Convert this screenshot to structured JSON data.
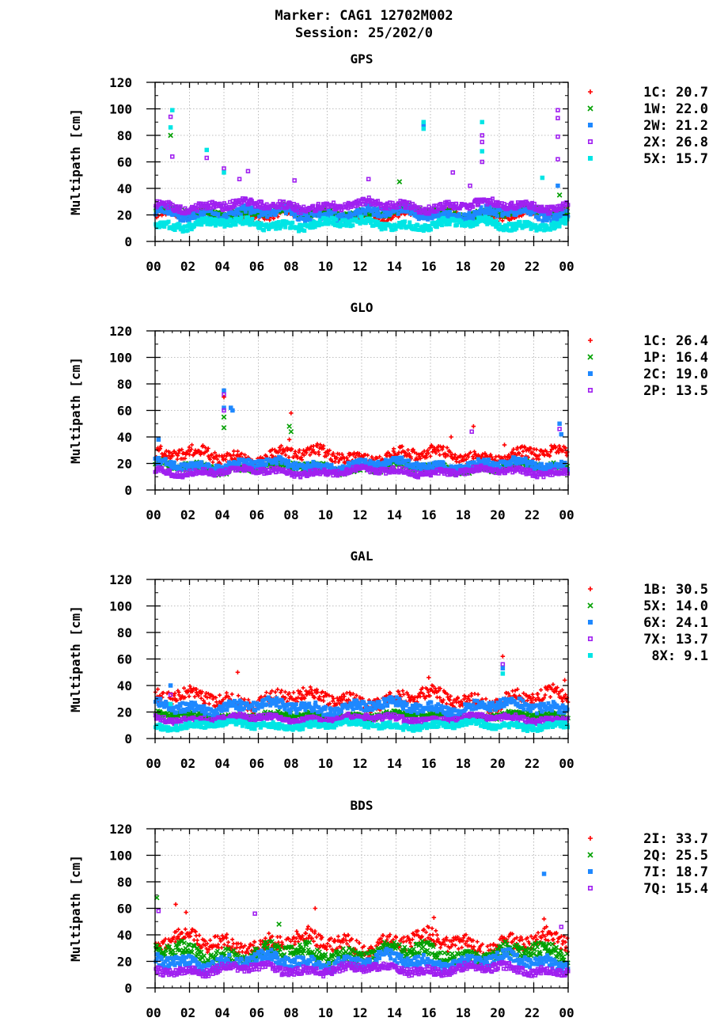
{
  "header": {
    "marker_line": "Marker: CAG1 12702M002",
    "session_line": "Session: 25/202/0"
  },
  "colors": {
    "red": "#ff0000",
    "green": "#00a000",
    "blue": "#1e88ff",
    "purple": "#a020f0",
    "cyan": "#00e5e5"
  },
  "chart_data": [
    {
      "type": "scatter",
      "title": "GPS",
      "ylabel": "Multipath [cm]",
      "xlabel": "",
      "ylim": [
        0,
        120
      ],
      "yticks": [
        0,
        20,
        40,
        60,
        80,
        100,
        120
      ],
      "xlim": [
        0,
        24
      ],
      "xticks": [
        "00",
        "02",
        "04",
        "06",
        "08",
        "10",
        "12",
        "14",
        "16",
        "18",
        "20",
        "22",
        "00"
      ],
      "grid": true,
      "legend": "right",
      "series": [
        {
          "code": "1C",
          "value": "20.7",
          "marker": "plus",
          "color": "#ff0000"
        },
        {
          "code": "1W",
          "value": "22.0",
          "marker": "x",
          "color": "#00a000"
        },
        {
          "code": "2W",
          "value": "21.2",
          "marker": "square",
          "color": "#1e88ff"
        },
        {
          "code": "2X",
          "value": "26.8",
          "marker": "open-square",
          "color": "#a020f0"
        },
        {
          "code": "5X",
          "value": "15.7",
          "marker": "square",
          "color": "#00e5e5"
        }
      ],
      "points": [
        {
          "series": 3,
          "x": 0.9,
          "y": 94
        },
        {
          "series": 4,
          "x": 1.0,
          "y": 99
        },
        {
          "series": 1,
          "x": 0.9,
          "y": 80
        },
        {
          "series": 4,
          "x": 0.9,
          "y": 86
        },
        {
          "series": 3,
          "x": 1.0,
          "y": 64
        },
        {
          "series": 4,
          "x": 3.0,
          "y": 69
        },
        {
          "series": 3,
          "x": 3.0,
          "y": 63
        },
        {
          "series": 3,
          "x": 4.0,
          "y": 55
        },
        {
          "series": 4,
          "x": 4.0,
          "y": 52
        },
        {
          "series": 3,
          "x": 5.4,
          "y": 53
        },
        {
          "series": 2,
          "x": 15.6,
          "y": 88
        },
        {
          "series": 4,
          "x": 15.6,
          "y": 90
        },
        {
          "series": 4,
          "x": 15.6,
          "y": 85
        },
        {
          "series": 4,
          "x": 19.0,
          "y": 90
        },
        {
          "series": 3,
          "x": 19.0,
          "y": 80
        },
        {
          "series": 3,
          "x": 19.0,
          "y": 75
        },
        {
          "series": 4,
          "x": 19.0,
          "y": 68
        },
        {
          "series": 3,
          "x": 19.0,
          "y": 60
        },
        {
          "series": 3,
          "x": 23.4,
          "y": 99
        },
        {
          "series": 3,
          "x": 23.4,
          "y": 93
        },
        {
          "series": 3,
          "x": 23.4,
          "y": 79
        },
        {
          "series": 3,
          "x": 23.4,
          "y": 62
        },
        {
          "series": 1,
          "x": 23.5,
          "y": 35
        },
        {
          "series": 2,
          "x": 23.4,
          "y": 42
        },
        {
          "series": 3,
          "x": 4.9,
          "y": 47
        },
        {
          "series": 3,
          "x": 8.1,
          "y": 46
        },
        {
          "series": 3,
          "x": 12.4,
          "y": 47
        },
        {
          "series": 1,
          "x": 14.2,
          "y": 45
        },
        {
          "series": 3,
          "x": 17.3,
          "y": 52
        },
        {
          "series": 3,
          "x": 18.3,
          "y": 42
        },
        {
          "series": 4,
          "x": 22.5,
          "y": 48
        }
      ]
    },
    {
      "type": "scatter",
      "title": "GLO",
      "ylabel": "Multipath [cm]",
      "xlabel": "",
      "ylim": [
        0,
        120
      ],
      "yticks": [
        0,
        20,
        40,
        60,
        80,
        100,
        120
      ],
      "xlim": [
        0,
        24
      ],
      "xticks": [
        "00",
        "02",
        "04",
        "06",
        "08",
        "10",
        "12",
        "14",
        "16",
        "18",
        "20",
        "22",
        "00"
      ],
      "grid": true,
      "legend": "right",
      "series": [
        {
          "code": "1C",
          "value": "26.4",
          "marker": "plus",
          "color": "#ff0000"
        },
        {
          "code": "1P",
          "value": "16.4",
          "marker": "x",
          "color": "#00a000"
        },
        {
          "code": "2C",
          "value": "19.0",
          "marker": "square",
          "color": "#1e88ff"
        },
        {
          "code": "2P",
          "value": "13.5",
          "marker": "open-square",
          "color": "#a020f0"
        }
      ],
      "points": [
        {
          "series": 2,
          "x": 4.0,
          "y": 75
        },
        {
          "series": 3,
          "x": 4.0,
          "y": 72
        },
        {
          "series": 0,
          "x": 4.0,
          "y": 70
        },
        {
          "series": 2,
          "x": 4.0,
          "y": 62
        },
        {
          "series": 3,
          "x": 4.0,
          "y": 60
        },
        {
          "series": 1,
          "x": 4.0,
          "y": 55
        },
        {
          "series": 1,
          "x": 4.0,
          "y": 47
        },
        {
          "series": 2,
          "x": 4.4,
          "y": 62
        },
        {
          "series": 2,
          "x": 4.5,
          "y": 60
        },
        {
          "series": 0,
          "x": 7.9,
          "y": 58
        },
        {
          "series": 1,
          "x": 7.8,
          "y": 48
        },
        {
          "series": 1,
          "x": 7.9,
          "y": 44
        },
        {
          "series": 0,
          "x": 7.8,
          "y": 38
        },
        {
          "series": 0,
          "x": 18.5,
          "y": 48
        },
        {
          "series": 3,
          "x": 18.4,
          "y": 44
        },
        {
          "series": 0,
          "x": 17.2,
          "y": 40
        },
        {
          "series": 0,
          "x": 20.3,
          "y": 34
        },
        {
          "series": 2,
          "x": 23.5,
          "y": 50
        },
        {
          "series": 3,
          "x": 23.5,
          "y": 46
        },
        {
          "series": 2,
          "x": 23.6,
          "y": 42
        },
        {
          "series": 2,
          "x": 0.2,
          "y": 38
        }
      ]
    },
    {
      "type": "scatter",
      "title": "GAL",
      "ylabel": "Multipath [cm]",
      "xlabel": "",
      "ylim": [
        0,
        120
      ],
      "yticks": [
        0,
        20,
        40,
        60,
        80,
        100,
        120
      ],
      "xlim": [
        0,
        24
      ],
      "xticks": [
        "00",
        "02",
        "04",
        "06",
        "08",
        "10",
        "12",
        "14",
        "16",
        "18",
        "20",
        "22",
        "00"
      ],
      "grid": true,
      "legend": "right",
      "series": [
        {
          "code": "1B",
          "value": "30.5",
          "marker": "plus",
          "color": "#ff0000"
        },
        {
          "code": "5X",
          "value": "14.0",
          "marker": "x",
          "color": "#00a000"
        },
        {
          "code": "6X",
          "value": "24.1",
          "marker": "square",
          "color": "#1e88ff"
        },
        {
          "code": "7X",
          "value": "13.7",
          "marker": "open-square",
          "color": "#a020f0"
        },
        {
          "code": "8X",
          "value": " 9.1",
          "marker": "square",
          "color": "#00e5e5"
        }
      ],
      "points": [
        {
          "series": 0,
          "x": 20.2,
          "y": 62
        },
        {
          "series": 3,
          "x": 20.2,
          "y": 56
        },
        {
          "series": 2,
          "x": 20.2,
          "y": 53
        },
        {
          "series": 4,
          "x": 20.2,
          "y": 49
        },
        {
          "series": 2,
          "x": 0.9,
          "y": 40
        },
        {
          "series": 3,
          "x": 0.9,
          "y": 33
        },
        {
          "series": 0,
          "x": 4.8,
          "y": 50
        },
        {
          "series": 0,
          "x": 15.9,
          "y": 46
        },
        {
          "series": 0,
          "x": 23.8,
          "y": 44
        },
        {
          "series": 4,
          "x": 0.9,
          "y": 26
        }
      ]
    },
    {
      "type": "scatter",
      "title": "BDS",
      "ylabel": "Multipath [cm]",
      "xlabel": "",
      "ylim": [
        0,
        120
      ],
      "yticks": [
        0,
        20,
        40,
        60,
        80,
        100,
        120
      ],
      "xlim": [
        0,
        24
      ],
      "xticks": [
        "00",
        "02",
        "04",
        "06",
        "08",
        "10",
        "12",
        "14",
        "16",
        "18",
        "20",
        "22",
        "00"
      ],
      "grid": true,
      "legend": "right",
      "series": [
        {
          "code": "2I",
          "value": "33.7",
          "marker": "plus",
          "color": "#ff0000"
        },
        {
          "code": "2Q",
          "value": "25.5",
          "marker": "x",
          "color": "#00a000"
        },
        {
          "code": "7I",
          "value": "18.7",
          "marker": "square",
          "color": "#1e88ff"
        },
        {
          "code": "7Q",
          "value": "15.4",
          "marker": "open-square",
          "color": "#a020f0"
        }
      ],
      "points": [
        {
          "series": 2,
          "x": 22.6,
          "y": 86
        },
        {
          "series": 0,
          "x": 22.6,
          "y": 52
        },
        {
          "series": 1,
          "x": 0.1,
          "y": 68
        },
        {
          "series": 0,
          "x": 1.2,
          "y": 63
        },
        {
          "series": 3,
          "x": 0.2,
          "y": 58
        },
        {
          "series": 3,
          "x": 5.8,
          "y": 56
        },
        {
          "series": 0,
          "x": 9.3,
          "y": 60
        },
        {
          "series": 0,
          "x": 16.2,
          "y": 53
        },
        {
          "series": 3,
          "x": 23.6,
          "y": 46
        },
        {
          "series": 1,
          "x": 7.2,
          "y": 48
        },
        {
          "series": 0,
          "x": 1.8,
          "y": 57
        }
      ]
    }
  ]
}
